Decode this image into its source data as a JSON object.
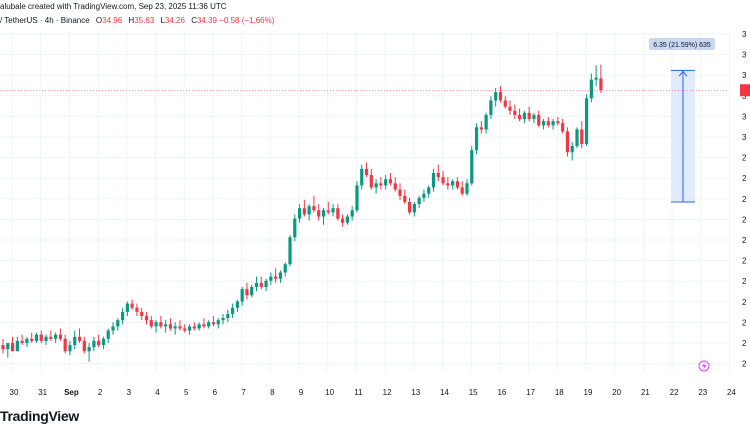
{
  "header": {
    "credit": "alubale created with TradingView.com, Sep 23, 2025 11:36 UTC",
    "symbol": "/ TetherUS · 4h · Binance",
    "ohlc": {
      "o_label": "O",
      "o": "34.96",
      "h_label": "H",
      "h": "35.63",
      "l_label": "L",
      "l": "34.26",
      "c_label": "C",
      "c": "34.39",
      "change": "−0.58 (−1.66%)"
    }
  },
  "measure": {
    "label": "6.35 (21.59%) 635"
  },
  "logo": "TradingView",
  "colors": {
    "up": "#089981",
    "down": "#f23645",
    "measure_fill": "#dbe7fb",
    "measure_line": "#2962ff",
    "grid": "#f0f3fa",
    "axis_text": "#131722",
    "last_price_bg": "#f23645"
  },
  "right_axis_ticks": [
    "3",
    "3",
    "3",
    "3",
    "3",
    "3",
    "2",
    "2",
    "2",
    "2",
    "2",
    "2",
    "2",
    "2",
    "2",
    "2",
    "2"
  ],
  "chart_data": {
    "type": "candlestick",
    "x_labels": [
      "30",
      "31",
      "Sep",
      "2",
      "3",
      "4",
      "5",
      "6",
      "7",
      "8",
      "9",
      "10",
      "11",
      "12",
      "13",
      "14",
      "15",
      "16",
      "17",
      "18",
      "19",
      "20",
      "21",
      "22",
      "23",
      "24"
    ],
    "candles": [
      {
        "o": 22.1,
        "h": 22.4,
        "l": 21.7,
        "c": 21.9
      },
      {
        "o": 21.9,
        "h": 22.2,
        "l": 21.5,
        "c": 22.2
      },
      {
        "o": 22.2,
        "h": 22.5,
        "l": 21.8,
        "c": 21.8
      },
      {
        "o": 21.8,
        "h": 22.5,
        "l": 21.8,
        "c": 22.3
      },
      {
        "o": 22.3,
        "h": 22.6,
        "l": 22.1,
        "c": 22.2
      },
      {
        "o": 22.2,
        "h": 22.5,
        "l": 22.0,
        "c": 22.4
      },
      {
        "o": 22.4,
        "h": 22.7,
        "l": 22.2,
        "c": 22.3
      },
      {
        "o": 22.3,
        "h": 22.7,
        "l": 22.2,
        "c": 22.6
      },
      {
        "o": 22.6,
        "h": 22.8,
        "l": 22.2,
        "c": 22.3
      },
      {
        "o": 22.3,
        "h": 22.6,
        "l": 22.1,
        "c": 22.5
      },
      {
        "o": 22.5,
        "h": 22.8,
        "l": 22.3,
        "c": 22.4
      },
      {
        "o": 22.4,
        "h": 22.7,
        "l": 22.2,
        "c": 22.6
      },
      {
        "o": 22.6,
        "h": 22.9,
        "l": 22.3,
        "c": 22.4
      },
      {
        "o": 22.4,
        "h": 22.6,
        "l": 21.7,
        "c": 21.8
      },
      {
        "o": 21.8,
        "h": 22.3,
        "l": 21.6,
        "c": 22.1
      },
      {
        "o": 22.1,
        "h": 22.8,
        "l": 21.9,
        "c": 22.5
      },
      {
        "o": 22.5,
        "h": 22.9,
        "l": 22.2,
        "c": 22.3
      },
      {
        "o": 22.3,
        "h": 22.5,
        "l": 21.7,
        "c": 21.8
      },
      {
        "o": 21.8,
        "h": 22.2,
        "l": 21.3,
        "c": 22.0
      },
      {
        "o": 22.0,
        "h": 22.5,
        "l": 21.8,
        "c": 22.3
      },
      {
        "o": 22.3,
        "h": 22.6,
        "l": 22.0,
        "c": 22.1
      },
      {
        "o": 22.1,
        "h": 22.5,
        "l": 21.9,
        "c": 22.4
      },
      {
        "o": 22.4,
        "h": 22.9,
        "l": 22.2,
        "c": 22.8
      },
      {
        "o": 22.8,
        "h": 23.2,
        "l": 22.6,
        "c": 23.0
      },
      {
        "o": 23.0,
        "h": 23.4,
        "l": 22.8,
        "c": 23.3
      },
      {
        "o": 23.3,
        "h": 23.9,
        "l": 23.1,
        "c": 23.7
      },
      {
        "o": 23.7,
        "h": 24.2,
        "l": 23.5,
        "c": 24.1
      },
      {
        "o": 24.1,
        "h": 24.3,
        "l": 23.8,
        "c": 23.9
      },
      {
        "o": 23.9,
        "h": 24.1,
        "l": 23.5,
        "c": 23.7
      },
      {
        "o": 23.7,
        "h": 23.9,
        "l": 23.3,
        "c": 23.5
      },
      {
        "o": 23.5,
        "h": 23.7,
        "l": 23.1,
        "c": 23.3
      },
      {
        "o": 23.3,
        "h": 23.5,
        "l": 22.9,
        "c": 23.0
      },
      {
        "o": 23.0,
        "h": 23.3,
        "l": 22.7,
        "c": 23.2
      },
      {
        "o": 23.2,
        "h": 23.5,
        "l": 22.9,
        "c": 23.0
      },
      {
        "o": 23.0,
        "h": 23.3,
        "l": 22.7,
        "c": 23.1
      },
      {
        "o": 23.1,
        "h": 23.4,
        "l": 22.8,
        "c": 22.9
      },
      {
        "o": 22.9,
        "h": 23.2,
        "l": 22.6,
        "c": 23.0
      },
      {
        "o": 23.0,
        "h": 23.3,
        "l": 22.8,
        "c": 22.9
      },
      {
        "o": 22.9,
        "h": 23.1,
        "l": 22.7,
        "c": 22.8
      },
      {
        "o": 22.8,
        "h": 23.1,
        "l": 22.6,
        "c": 23.0
      },
      {
        "o": 23.0,
        "h": 23.2,
        "l": 22.8,
        "c": 22.9
      },
      {
        "o": 22.9,
        "h": 23.2,
        "l": 22.8,
        "c": 23.1
      },
      {
        "o": 23.1,
        "h": 23.4,
        "l": 22.9,
        "c": 23.0
      },
      {
        "o": 23.0,
        "h": 23.3,
        "l": 22.9,
        "c": 23.2
      },
      {
        "o": 23.2,
        "h": 23.5,
        "l": 23.0,
        "c": 23.1
      },
      {
        "o": 23.1,
        "h": 23.4,
        "l": 22.9,
        "c": 23.3
      },
      {
        "o": 23.3,
        "h": 23.6,
        "l": 23.1,
        "c": 23.4
      },
      {
        "o": 23.4,
        "h": 23.8,
        "l": 23.2,
        "c": 23.6
      },
      {
        "o": 23.6,
        "h": 24.1,
        "l": 23.4,
        "c": 23.9
      },
      {
        "o": 23.9,
        "h": 24.3,
        "l": 23.7,
        "c": 24.2
      },
      {
        "o": 24.2,
        "h": 24.9,
        "l": 24.0,
        "c": 24.8
      },
      {
        "o": 24.8,
        "h": 25.1,
        "l": 24.3,
        "c": 24.5
      },
      {
        "o": 24.5,
        "h": 25.0,
        "l": 24.4,
        "c": 24.9
      },
      {
        "o": 24.9,
        "h": 25.4,
        "l": 24.7,
        "c": 25.1
      },
      {
        "o": 25.1,
        "h": 25.4,
        "l": 24.8,
        "c": 24.9
      },
      {
        "o": 24.9,
        "h": 25.3,
        "l": 24.7,
        "c": 25.2
      },
      {
        "o": 25.2,
        "h": 25.6,
        "l": 25.0,
        "c": 25.4
      },
      {
        "o": 25.4,
        "h": 25.8,
        "l": 25.1,
        "c": 25.3
      },
      {
        "o": 25.3,
        "h": 25.7,
        "l": 25.1,
        "c": 25.6
      },
      {
        "o": 25.6,
        "h": 26.1,
        "l": 25.4,
        "c": 26.0
      },
      {
        "o": 26.0,
        "h": 27.4,
        "l": 25.9,
        "c": 27.3
      },
      {
        "o": 27.3,
        "h": 28.4,
        "l": 27.1,
        "c": 28.2
      },
      {
        "o": 28.2,
        "h": 28.9,
        "l": 28.0,
        "c": 28.7
      },
      {
        "o": 28.7,
        "h": 29.1,
        "l": 28.3,
        "c": 28.4
      },
      {
        "o": 28.4,
        "h": 28.9,
        "l": 28.1,
        "c": 28.8
      },
      {
        "o": 28.8,
        "h": 29.3,
        "l": 28.5,
        "c": 28.6
      },
      {
        "o": 28.6,
        "h": 28.9,
        "l": 28.1,
        "c": 28.3
      },
      {
        "o": 28.3,
        "h": 28.7,
        "l": 27.9,
        "c": 28.6
      },
      {
        "o": 28.6,
        "h": 29.0,
        "l": 28.4,
        "c": 28.5
      },
      {
        "o": 28.5,
        "h": 28.9,
        "l": 28.3,
        "c": 28.7
      },
      {
        "o": 28.7,
        "h": 28.9,
        "l": 28.1,
        "c": 28.2
      },
      {
        "o": 28.2,
        "h": 28.4,
        "l": 27.8,
        "c": 28.0
      },
      {
        "o": 28.0,
        "h": 28.4,
        "l": 27.9,
        "c": 28.3
      },
      {
        "o": 28.3,
        "h": 28.8,
        "l": 28.1,
        "c": 28.6
      },
      {
        "o": 28.6,
        "h": 30.0,
        "l": 28.5,
        "c": 29.8
      },
      {
        "o": 29.8,
        "h": 30.8,
        "l": 29.6,
        "c": 30.6
      },
      {
        "o": 30.6,
        "h": 30.9,
        "l": 30.2,
        "c": 30.3
      },
      {
        "o": 30.3,
        "h": 30.6,
        "l": 29.6,
        "c": 29.7
      },
      {
        "o": 29.7,
        "h": 30.1,
        "l": 29.4,
        "c": 29.9
      },
      {
        "o": 29.9,
        "h": 30.2,
        "l": 29.6,
        "c": 29.8
      },
      {
        "o": 29.8,
        "h": 30.3,
        "l": 29.6,
        "c": 30.1
      },
      {
        "o": 30.1,
        "h": 30.4,
        "l": 29.8,
        "c": 29.9
      },
      {
        "o": 29.9,
        "h": 30.2,
        "l": 29.5,
        "c": 29.6
      },
      {
        "o": 29.6,
        "h": 29.9,
        "l": 29.1,
        "c": 29.3
      },
      {
        "o": 29.3,
        "h": 29.6,
        "l": 28.9,
        "c": 29.0
      },
      {
        "o": 29.0,
        "h": 29.2,
        "l": 28.4,
        "c": 28.5
      },
      {
        "o": 28.5,
        "h": 29.0,
        "l": 28.3,
        "c": 28.9
      },
      {
        "o": 28.9,
        "h": 29.3,
        "l": 28.7,
        "c": 29.2
      },
      {
        "o": 29.2,
        "h": 29.6,
        "l": 29.0,
        "c": 29.4
      },
      {
        "o": 29.4,
        "h": 29.8,
        "l": 29.2,
        "c": 29.7
      },
      {
        "o": 29.7,
        "h": 30.6,
        "l": 29.5,
        "c": 30.4
      },
      {
        "o": 30.4,
        "h": 30.8,
        "l": 30.0,
        "c": 30.2
      },
      {
        "o": 30.2,
        "h": 30.5,
        "l": 29.8,
        "c": 29.9
      },
      {
        "o": 29.9,
        "h": 30.2,
        "l": 29.6,
        "c": 29.8
      },
      {
        "o": 29.8,
        "h": 30.1,
        "l": 29.6,
        "c": 30.0
      },
      {
        "o": 30.0,
        "h": 30.2,
        "l": 29.6,
        "c": 29.7
      },
      {
        "o": 29.7,
        "h": 30.0,
        "l": 29.3,
        "c": 29.4
      },
      {
        "o": 29.4,
        "h": 30.1,
        "l": 29.3,
        "c": 29.9
      },
      {
        "o": 29.9,
        "h": 31.7,
        "l": 29.8,
        "c": 31.5
      },
      {
        "o": 31.5,
        "h": 32.8,
        "l": 31.3,
        "c": 32.6
      },
      {
        "o": 32.6,
        "h": 32.9,
        "l": 32.3,
        "c": 32.5
      },
      {
        "o": 32.5,
        "h": 33.3,
        "l": 32.3,
        "c": 33.2
      },
      {
        "o": 33.2,
        "h": 34.1,
        "l": 33.0,
        "c": 33.9
      },
      {
        "o": 33.9,
        "h": 34.5,
        "l": 33.6,
        "c": 34.3
      },
      {
        "o": 34.3,
        "h": 34.6,
        "l": 33.8,
        "c": 33.9
      },
      {
        "o": 33.9,
        "h": 34.1,
        "l": 33.5,
        "c": 33.6
      },
      {
        "o": 33.6,
        "h": 33.9,
        "l": 33.2,
        "c": 33.4
      },
      {
        "o": 33.4,
        "h": 33.7,
        "l": 33.0,
        "c": 33.2
      },
      {
        "o": 33.2,
        "h": 33.5,
        "l": 32.9,
        "c": 33.0
      },
      {
        "o": 33.0,
        "h": 33.4,
        "l": 32.8,
        "c": 33.3
      },
      {
        "o": 33.3,
        "h": 33.6,
        "l": 32.9,
        "c": 33.0
      },
      {
        "o": 33.0,
        "h": 33.3,
        "l": 32.8,
        "c": 33.2
      },
      {
        "o": 33.2,
        "h": 33.4,
        "l": 32.6,
        "c": 32.7
      },
      {
        "o": 32.7,
        "h": 33.0,
        "l": 32.5,
        "c": 32.9
      },
      {
        "o": 32.9,
        "h": 33.1,
        "l": 32.6,
        "c": 32.7
      },
      {
        "o": 32.7,
        "h": 33.0,
        "l": 32.5,
        "c": 32.9
      },
      {
        "o": 32.9,
        "h": 33.1,
        "l": 32.7,
        "c": 32.8
      },
      {
        "o": 32.8,
        "h": 33.0,
        "l": 32.3,
        "c": 32.4
      },
      {
        "o": 32.4,
        "h": 32.6,
        "l": 31.2,
        "c": 31.4
      },
      {
        "o": 31.4,
        "h": 31.9,
        "l": 31.0,
        "c": 31.7
      },
      {
        "o": 31.7,
        "h": 32.6,
        "l": 31.6,
        "c": 32.5
      },
      {
        "o": 32.5,
        "h": 32.9,
        "l": 31.6,
        "c": 31.8
      },
      {
        "o": 31.8,
        "h": 34.2,
        "l": 31.7,
        "c": 34.0
      },
      {
        "o": 34.0,
        "h": 35.2,
        "l": 33.8,
        "c": 34.9
      },
      {
        "o": 34.9,
        "h": 35.6,
        "l": 34.6,
        "c": 35.0
      },
      {
        "o": 34.96,
        "h": 35.63,
        "l": 34.26,
        "c": 34.39
      }
    ],
    "price_range": [
      20.8,
      37.2
    ]
  }
}
